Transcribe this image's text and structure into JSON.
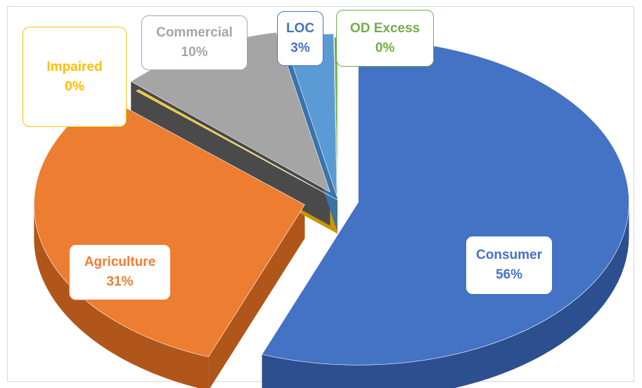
{
  "chart_data": {
    "type": "pie",
    "title": "",
    "style": "3d-exploded",
    "legend": "none",
    "slices": [
      {
        "name": "Consumer",
        "value": 56,
        "label": "56%",
        "color": "#4472c4",
        "dark": "#2c4f8f",
        "labelColor": "#4472c4"
      },
      {
        "name": "Agriculture",
        "value": 31,
        "label": "31%",
        "color": "#ed7d31",
        "dark": "#b0561a",
        "labelColor": "#ed7d31"
      },
      {
        "name": "Impaired",
        "value": 0,
        "label": "0%",
        "color": "#ffc000",
        "dark": "#c99700",
        "labelColor": "#ffc000"
      },
      {
        "name": "Commercial",
        "value": 10,
        "label": "10%",
        "color": "#a5a5a5",
        "dark": "#4a4a4a",
        "labelColor": "#a5a5a5"
      },
      {
        "name": "LOC",
        "value": 3,
        "label": "3%",
        "color": "#5b9bd5",
        "dark": "#3a73a8",
        "labelColor": "#4472c4"
      },
      {
        "name": "OD Excess",
        "value": 0,
        "label": "0%",
        "color": "#70ad47",
        "dark": "#4f7f31",
        "labelColor": "#70ad47"
      }
    ]
  }
}
